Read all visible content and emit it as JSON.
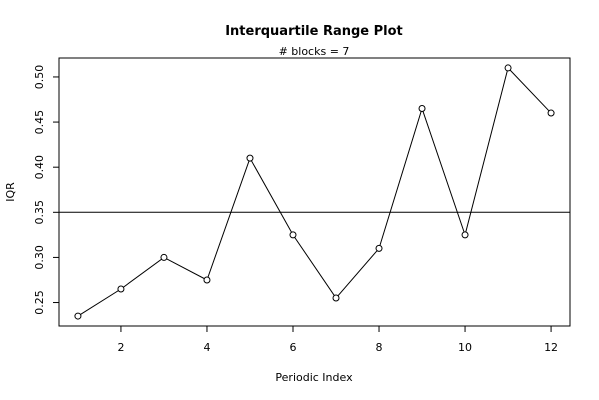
{
  "chart_data": {
    "type": "line",
    "title": "Interquartile Range Plot",
    "subtitle": "# blocks =  7",
    "x_label": "Periodic Index",
    "y_label": "IQR",
    "x": [
      1,
      2,
      3,
      4,
      5,
      6,
      7,
      8,
      9,
      10,
      11,
      12
    ],
    "values": [
      0.235,
      0.265,
      0.3,
      0.275,
      0.41,
      0.325,
      0.255,
      0.31,
      0.465,
      0.325,
      0.51,
      0.46
    ],
    "color": "#000000",
    "reference_line": 0.35,
    "xlim": [
      0.56,
      12.44
    ],
    "ylim": [
      0.224,
      0.521
    ],
    "xticks": [
      2,
      4,
      6,
      8,
      10,
      12
    ],
    "yticks": [
      0.25,
      {
        "value": 0.3,
        "label": "0.30"
      },
      0.35,
      {
        "value": 0.4,
        "label": "0.40"
      },
      0.45,
      {
        "value": 0.5,
        "label": "0.50"
      }
    ]
  }
}
